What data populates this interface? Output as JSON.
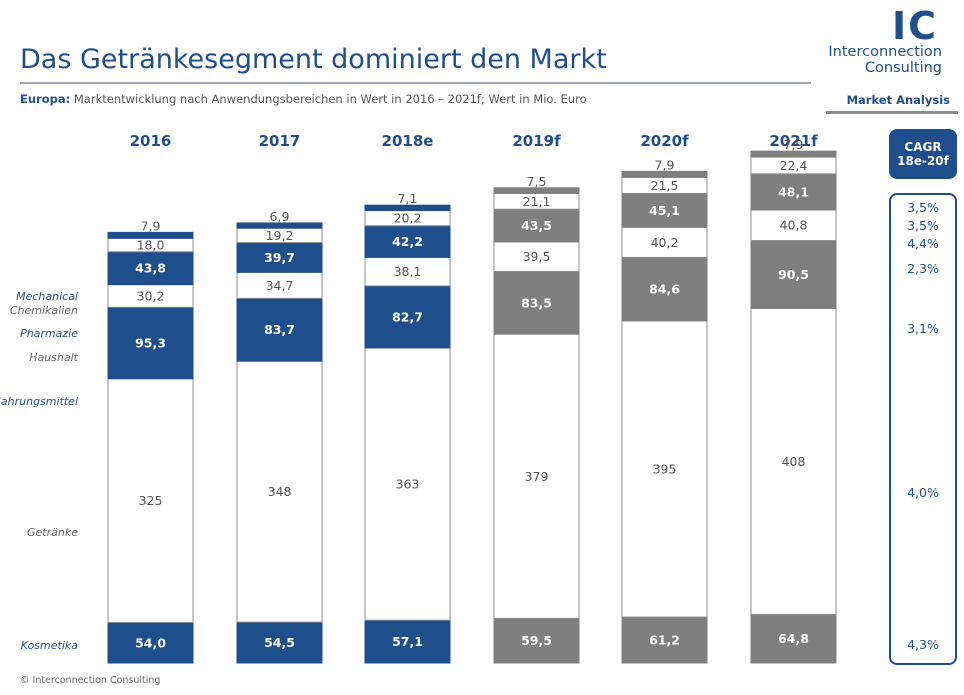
{
  "header": {
    "title": "Das Getränkesegment dominiert den Markt",
    "subtitle_region": "Europa:",
    "subtitle_text": " Marktentwicklung nach Anwendungsbereichen in Wert in 2016 – 2021f; Wert in Mio. Euro",
    "market_analysis": "Market Analysis"
  },
  "logo": {
    "mark": "IC",
    "line1": "Interconnection",
    "line2": "Consulting"
  },
  "cagr": {
    "title_line1": "CAGR",
    "title_line2": "18e-20f"
  },
  "footer": {
    "copyright": "© Interconnection Consulting"
  },
  "colors": {
    "blue": "#1f4e8c",
    "gray": "#7f7f7f",
    "white": "#ffffff",
    "border": "#8c8c8c"
  },
  "chart_data": {
    "type": "bar",
    "stacked": true,
    "categories": [
      "2016",
      "2017",
      "2018e",
      "2019f",
      "2020f",
      "2021f"
    ],
    "series": [
      {
        "name": "Kosmetika",
        "values": [
          54.0,
          54.5,
          57.1,
          59.5,
          61.2,
          64.8
        ],
        "labels": [
          "54,0",
          "54,5",
          "57,1",
          "59,5",
          "61,2",
          "64,8"
        ],
        "cagr": "4,3%"
      },
      {
        "name": "Getränke",
        "values": [
          325,
          348,
          363,
          379,
          395,
          408
        ],
        "labels": [
          "325",
          "348",
          "363",
          "379",
          "395",
          "408"
        ],
        "cagr": "4,0%"
      },
      {
        "name": "Nahrungsmittel",
        "values": [
          95.3,
          83.7,
          82.7,
          83.5,
          84.6,
          90.5
        ],
        "labels": [
          "95,3",
          "83,7",
          "82,7",
          "83,5",
          "84,6",
          "90,5"
        ],
        "cagr": "3,1%"
      },
      {
        "name": "Haushalt",
        "values": [
          30.2,
          34.7,
          38.1,
          39.5,
          40.2,
          40.8
        ],
        "labels": [
          "30,2",
          "34,7",
          "38,1",
          "39,5",
          "40,2",
          "40,8"
        ],
        "cagr": "2,3%"
      },
      {
        "name": "Pharmazie",
        "values": [
          43.8,
          39.7,
          42.2,
          43.5,
          45.1,
          48.1
        ],
        "labels": [
          "43,8",
          "39,7",
          "42,2",
          "43,5",
          "45,1",
          "48,1"
        ],
        "cagr": "4,4%"
      },
      {
        "name": "Chemikalien",
        "values": [
          18.0,
          19.2,
          20.2,
          21.1,
          21.5,
          22.4
        ],
        "labels": [
          "18,0",
          "19,2",
          "20,2",
          "21,1",
          "21,5",
          "22,4"
        ],
        "cagr": "3,5%"
      },
      {
        "name": "Mechanical",
        "values": [
          7.9,
          6.9,
          7.1,
          7.5,
          7.9,
          7.9
        ],
        "labels": [
          "7,9",
          "6,9",
          "7,1",
          "7,5",
          "7,9",
          "7,9"
        ],
        "cagr": "3,5%"
      }
    ],
    "fills": [
      [
        "blue",
        "white",
        "blue",
        "white",
        "blue",
        "white",
        "blue"
      ],
      [
        "blue",
        "white",
        "blue",
        "white",
        "blue",
        "white",
        "blue"
      ],
      [
        "blue",
        "white",
        "blue",
        "white",
        "blue",
        "white",
        "blue"
      ],
      [
        "gray",
        "white",
        "gray",
        "white",
        "gray",
        "white",
        "gray"
      ],
      [
        "gray",
        "white",
        "gray",
        "white",
        "gray",
        "white",
        "gray"
      ],
      [
        "gray",
        "white",
        "gray",
        "white",
        "gray",
        "white",
        "gray"
      ]
    ],
    "cagr_order": [
      "Mechanical",
      "Chemikalien",
      "Pharmazie",
      "Haushalt",
      "Nahrungsmittel",
      "Getränke",
      "Kosmetika"
    ],
    "legend_placement": "left",
    "grid": false
  }
}
